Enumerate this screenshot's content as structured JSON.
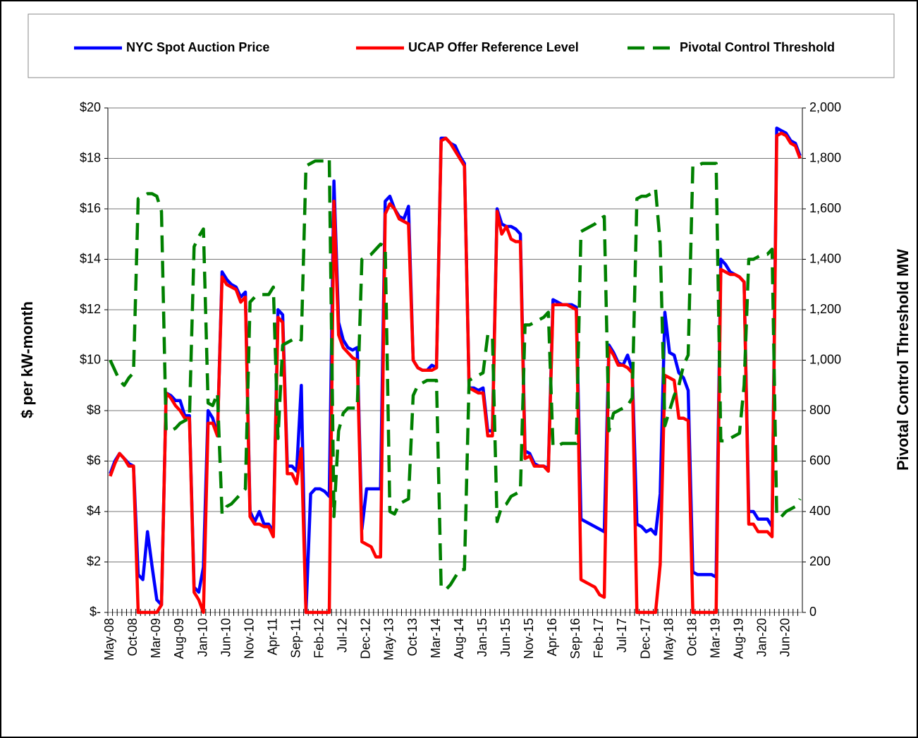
{
  "chart_data": {
    "type": "line",
    "y_label": "$ per kW-month",
    "y2_label": "Pivotal Control Threshold MW",
    "legend": "top",
    "grid": true,
    "categories": [
      "May-08",
      null,
      null,
      null,
      null,
      "Oct-08",
      null,
      null,
      null,
      null,
      "Mar-09",
      null,
      null,
      null,
      null,
      "Aug-09",
      null,
      null,
      null,
      null,
      "Jan-10",
      null,
      null,
      null,
      null,
      "Jun-10",
      null,
      null,
      null,
      null,
      "Nov-10",
      null,
      null,
      null,
      null,
      "Apr-11",
      null,
      null,
      null,
      null,
      "Sep-11",
      null,
      null,
      null,
      null,
      "Feb-12",
      null,
      null,
      null,
      null,
      "Jul-12",
      null,
      null,
      null,
      null,
      "Dec-12",
      null,
      null,
      null,
      null,
      "May-13",
      null,
      null,
      null,
      null,
      "Oct-13",
      null,
      null,
      null,
      null,
      "Mar-14",
      null,
      null,
      null,
      null,
      "Aug-14",
      null,
      null,
      null,
      null,
      "Jan-15",
      null,
      null,
      null,
      null,
      "Jun-15",
      null,
      null,
      null,
      null,
      "Nov-15",
      null,
      null,
      null,
      null,
      "Apr-16",
      null,
      null,
      null,
      null,
      "Sep-16",
      null,
      null,
      null,
      null,
      "Feb-17",
      null,
      null,
      null,
      null,
      "Jul-17",
      null,
      null,
      null,
      null,
      "Dec-17",
      null,
      null,
      null,
      null,
      "May-18",
      null,
      null,
      null,
      null,
      "Oct-18",
      null,
      null,
      null,
      null,
      "Mar-19",
      null,
      null,
      null,
      null,
      "Aug-19",
      null,
      null,
      null,
      null,
      "Jan-20",
      null,
      null,
      null,
      null,
      "Jun-20",
      null,
      null,
      null
    ],
    "ylim": [
      0,
      20
    ],
    "yticks": [
      {
        "value": 0,
        "label": "$-"
      },
      {
        "value": 2,
        "label": "$2"
      },
      {
        "value": 4,
        "label": "$4"
      },
      {
        "value": 6,
        "label": "$6"
      },
      {
        "value": 8,
        "label": "$8"
      },
      {
        "value": 10,
        "label": "$10"
      },
      {
        "value": 12,
        "label": "$12"
      },
      {
        "value": 14,
        "label": "$14"
      },
      {
        "value": 16,
        "label": "$16"
      },
      {
        "value": 18,
        "label": "$18"
      },
      {
        "value": 20,
        "label": "$20"
      }
    ],
    "y2lim": [
      0,
      2000
    ],
    "y2ticks": [
      0,
      200,
      400,
      600,
      800,
      {
        "value": 1000,
        "label": "1,000"
      },
      {
        "value": 1200,
        "label": "1,200"
      },
      {
        "value": 1400,
        "label": "1,400"
      },
      {
        "value": 1600,
        "label": "1,600"
      },
      {
        "value": 1800,
        "label": "1,800"
      },
      {
        "value": 2000,
        "label": "2,000"
      }
    ],
    "series": [
      {
        "name": "NYC Spot Auction Price",
        "color": "#0000ff",
        "dash": false,
        "values": [
          5.5,
          6.0,
          6.3,
          6.1,
          5.9,
          5.8,
          1.5,
          1.3,
          3.2,
          1.8,
          0.5,
          0.3,
          8.7,
          8.6,
          8.4,
          8.4,
          7.8,
          7.8,
          1.0,
          0.8,
          1.8,
          8.0,
          7.7,
          7.0,
          13.5,
          13.2,
          13.0,
          12.9,
          12.5,
          12.7,
          4.0,
          3.6,
          4.0,
          3.5,
          3.5,
          3.2,
          12.0,
          11.8,
          5.8,
          5.8,
          5.6,
          9.0,
          0,
          4.7,
          4.9,
          4.9,
          4.8,
          4.6,
          17.1,
          11.5,
          10.8,
          10.5,
          10.4,
          10.5,
          3.3,
          4.9,
          4.9,
          4.9,
          4.9,
          16.3,
          16.5,
          16.0,
          15.7,
          15.6,
          16.1,
          10.0,
          9.7,
          9.6,
          9.6,
          9.8,
          9.7,
          18.8,
          18.8,
          18.6,
          18.5,
          18.1,
          17.8,
          8.9,
          8.9,
          8.8,
          8.9,
          7.2,
          7.2,
          16.0,
          15.4,
          15.3,
          15.3,
          15.2,
          15.0,
          6.4,
          6.3,
          5.9,
          5.8,
          5.8,
          5.7,
          12.4,
          12.3,
          12.2,
          12.2,
          12.2,
          12.1,
          3.7,
          3.6,
          3.5,
          3.4,
          3.3,
          3.2,
          10.6,
          10.3,
          9.9,
          9.8,
          10.2,
          9.6,
          3.5,
          3.4,
          3.2,
          3.3,
          3.1,
          4.7,
          11.9,
          10.3,
          10.2,
          9.5,
          9.3,
          8.8,
          1.6,
          1.5,
          1.5,
          1.5,
          1.5,
          1.4,
          14.0,
          13.8,
          13.5,
          13.4,
          13.3,
          13.1,
          4.0,
          4.0,
          3.7,
          3.7,
          3.7,
          3.4,
          19.2,
          19.1,
          19.0,
          18.7,
          18.6,
          18.1
        ]
      },
      {
        "name": "UCAP Offer Reference Level",
        "color": "#ff0000",
        "dash": false,
        "values": [
          5.4,
          5.9,
          6.3,
          6.1,
          5.8,
          5.8,
          0,
          0,
          0,
          0,
          0,
          0.3,
          8.7,
          8.5,
          8.2,
          8.0,
          7.7,
          7.7,
          0.8,
          0.5,
          0,
          7.5,
          7.5,
          7.0,
          13.3,
          13.0,
          12.9,
          12.8,
          12.3,
          12.5,
          3.8,
          3.5,
          3.5,
          3.4,
          3.4,
          3.0,
          11.7,
          11.5,
          5.5,
          5.5,
          5.1,
          6.5,
          0,
          0,
          0,
          0,
          0,
          0,
          16.3,
          11.0,
          10.5,
          10.3,
          10.1,
          10.0,
          2.8,
          2.7,
          2.6,
          2.2,
          2.2,
          15.8,
          16.2,
          16.0,
          15.6,
          15.5,
          15.4,
          10.0,
          9.7,
          9.6,
          9.6,
          9.6,
          9.7,
          18.7,
          18.8,
          18.6,
          18.3,
          18.0,
          17.7,
          8.9,
          8.8,
          8.7,
          8.7,
          7.0,
          7.0,
          15.9,
          15.0,
          15.3,
          14.8,
          14.7,
          14.7,
          6.1,
          6.2,
          5.8,
          5.8,
          5.8,
          5.6,
          12.2,
          12.2,
          12.2,
          12.2,
          12.1,
          12.0,
          1.3,
          1.2,
          1.1,
          1.0,
          0.7,
          0.6,
          10.5,
          10.2,
          9.8,
          9.8,
          9.7,
          9.5,
          0,
          0,
          0,
          0,
          0,
          1.9,
          9.4,
          9.3,
          9.2,
          7.7,
          7.7,
          7.6,
          0,
          0,
          0,
          0,
          0,
          0,
          13.6,
          13.5,
          13.4,
          13.4,
          13.3,
          13.1,
          3.5,
          3.5,
          3.2,
          3.2,
          3.2,
          3.0,
          18.9,
          19.0,
          18.9,
          18.6,
          18.5,
          18.0
        ]
      },
      {
        "name": "Pivotal Control Threshold",
        "color": "#008000",
        "dash": true,
        "axis": "y2",
        "values": [
          1000,
          960,
          920,
          900,
          930,
          950,
          1640,
          1650,
          1660,
          1660,
          1650,
          1590,
          720,
          720,
          730,
          750,
          760,
          770,
          1450,
          1490,
          1520,
          830,
          820,
          870,
          390,
          420,
          430,
          450,
          470,
          490,
          1230,
          1250,
          1260,
          1260,
          1260,
          1290,
          690,
          1060,
          1070,
          1080,
          1090,
          1080,
          1770,
          1780,
          1790,
          1790,
          1790,
          1800,
          380,
          720,
          790,
          810,
          810,
          810,
          1400,
          1410,
          1420,
          1440,
          1460,
          1450,
          400,
          390,
          430,
          440,
          450,
          860,
          900,
          910,
          920,
          920,
          920,
          100,
          90,
          110,
          140,
          170,
          170,
          920,
          930,
          940,
          950,
          1100,
          1100,
          360,
          420,
          430,
          460,
          470,
          480,
          1140,
          1140,
          1150,
          1160,
          1170,
          1190,
          660,
          660,
          670,
          670,
          670,
          670,
          1510,
          1520,
          1530,
          1540,
          1560,
          1570,
          720,
          790,
          800,
          810,
          820,
          850,
          1640,
          1650,
          1650,
          1660,
          1680,
          1460,
          740,
          800,
          860,
          900,
          980,
          1020,
          1770,
          1770,
          1780,
          1780,
          1780,
          1780,
          680,
          680,
          690,
          700,
          710,
          900,
          1400,
          1400,
          1410,
          1420,
          1420,
          1440,
          380,
          380,
          400,
          410,
          420,
          450
        ]
      }
    ]
  }
}
